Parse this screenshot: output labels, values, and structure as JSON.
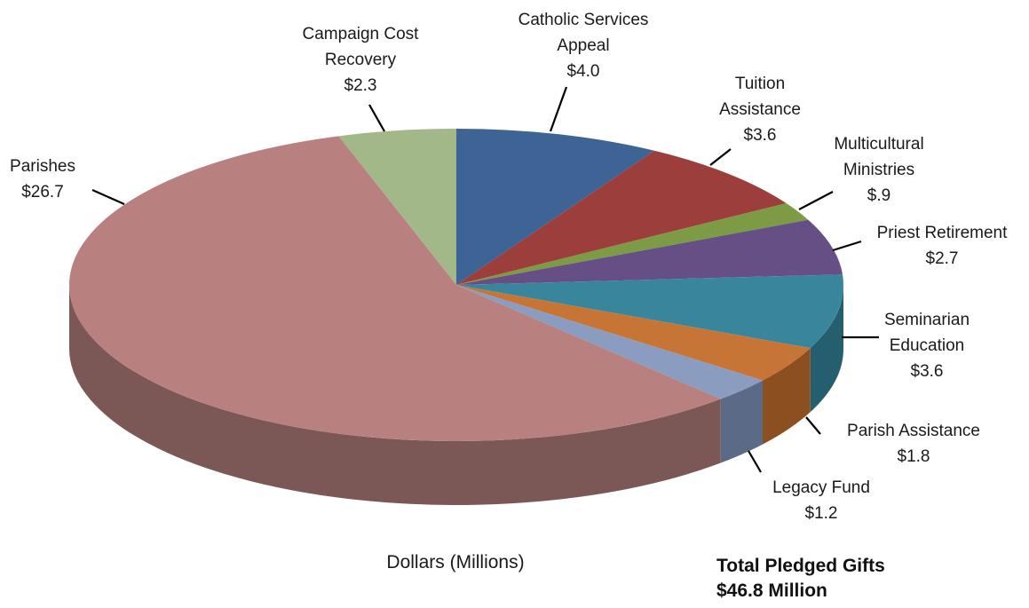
{
  "chart_data": {
    "type": "pie",
    "style": "3d-exploded-none",
    "start_angle_deg": 90,
    "direction": "clockwise",
    "slices": [
      {
        "label_lines": [
          "Catholic Services",
          "Appeal",
          "$4.0"
        ],
        "value": 4.0,
        "color": "#3e6496",
        "side_color": "#2c4a70"
      },
      {
        "label_lines": [
          "Tuition",
          "Assistance",
          "$3.6"
        ],
        "value": 3.6,
        "color": "#9c3e3c",
        "side_color": "#722c2b"
      },
      {
        "label_lines": [
          "Multicultural",
          "Ministries",
          "$.9"
        ],
        "value": 0.9,
        "color": "#7d9a44",
        "side_color": "#5a7131"
      },
      {
        "label_lines": [
          "Priest Retirement",
          "$2.7"
        ],
        "value": 2.7,
        "color": "#654f85",
        "side_color": "#483862"
      },
      {
        "label_lines": [
          "Seminarian",
          "Education",
          "$3.6"
        ],
        "value": 3.6,
        "color": "#39869c",
        "side_color": "#245e6f"
      },
      {
        "label_lines": [
          "Parish Assistance",
          "$1.8"
        ],
        "value": 1.8,
        "color": "#c77536",
        "side_color": "#8c4f20"
      },
      {
        "label_lines": [
          "Legacy Fund",
          "$1.2"
        ],
        "value": 1.2,
        "color": "#8a9cbf",
        "side_color": "#5b6a86"
      },
      {
        "label_lines": [
          "Parishes",
          "$26.7"
        ],
        "value": 26.7,
        "color": "#b8807e",
        "side_color": "#7b5755"
      },
      {
        "label_lines": [
          "Campaign Cost",
          "Recovery",
          "$2.3"
        ],
        "value": 2.3,
        "color": "#a3b888",
        "side_color": "#768760"
      }
    ],
    "caption": "Dollars (Millions)",
    "total_line1": "Total Pledged Gifts",
    "total_line2": "$46.8 Million"
  }
}
